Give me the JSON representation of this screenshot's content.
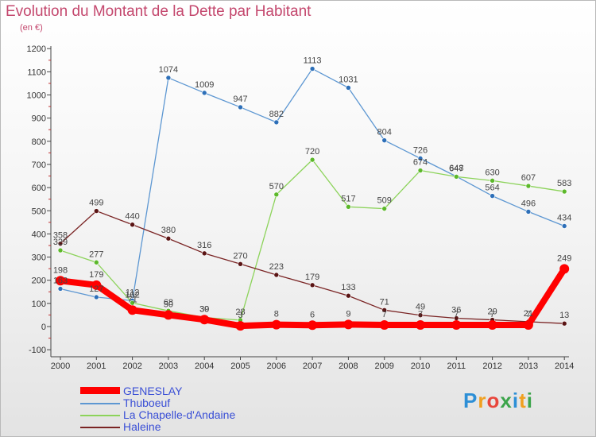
{
  "title": "Evolution du Montant de la Dette par Habitant",
  "unit": "(en €)",
  "logo": {
    "p": "P",
    "r": "r",
    "o": "o",
    "x": "x",
    "i": "i",
    "t": "t",
    "i2": "i"
  },
  "chart_data": {
    "type": "line",
    "title": "Evolution du Montant de la Dette par Habitant",
    "ylabel": "(en €)",
    "xlabel": "",
    "ylim": [
      -100,
      1200
    ],
    "yticks": [
      -100,
      0,
      100,
      200,
      300,
      400,
      500,
      600,
      700,
      800,
      900,
      1000,
      1100,
      1200
    ],
    "grid": false,
    "legend_position": "bottom-left",
    "categories": [
      "2000",
      "2001",
      "2002",
      "2003",
      "2004",
      "2005",
      "2006",
      "2007",
      "2008",
      "2009",
      "2010",
      "2011",
      "2012",
      "2013",
      "2014"
    ],
    "series": [
      {
        "name": "Thuboeuf",
        "color": "#5d97d2",
        "marker": "#2d6fb8",
        "values": [
          163,
          127,
          112,
          1074,
          1009,
          947,
          882,
          1113,
          1031,
          804,
          726,
          648,
          564,
          496,
          434
        ],
        "labels": [
          "163",
          "127",
          "112",
          "1074",
          "1009",
          "947",
          "882",
          "1113",
          "1031",
          "804",
          "726",
          "648",
          "564",
          "496",
          "434"
        ]
      },
      {
        "name": "La Chapelle-d'Andaine",
        "color": "#8cd35a",
        "marker": "#5cb82a",
        "values": [
          329,
          277,
          102,
          68,
          39,
          28,
          570,
          720,
          517,
          509,
          674,
          647,
          630,
          607,
          583
        ],
        "labels": [
          "329",
          "277",
          "102",
          "68",
          "39",
          "28",
          "570",
          "720",
          "517",
          "509",
          "674",
          "647",
          "630",
          "607",
          "583"
        ]
      },
      {
        "name": "Haleine",
        "color": "#7a2424",
        "marker": "#5a1414",
        "values": [
          358,
          499,
          440,
          380,
          316,
          270,
          223,
          179,
          133,
          71,
          49,
          36,
          29,
          21,
          13
        ],
        "labels": [
          "358",
          "499",
          "440",
          "380",
          "316",
          "270",
          "223",
          "179",
          "133",
          "71",
          "49",
          "36",
          "29",
          "21",
          "13"
        ]
      },
      {
        "name": "GENESLAY",
        "color": "#ff0000",
        "marker": "#ff0000",
        "values": [
          198,
          179,
          71,
          50,
          30,
          3,
          8,
          6,
          9,
          7,
          7,
          7,
          7,
          7,
          249
        ],
        "labels": [
          "198",
          "179",
          "71",
          "50",
          "30",
          "3",
          "8",
          "6",
          "9",
          "7",
          "7",
          "7",
          "7",
          "7",
          "249"
        ]
      }
    ]
  }
}
